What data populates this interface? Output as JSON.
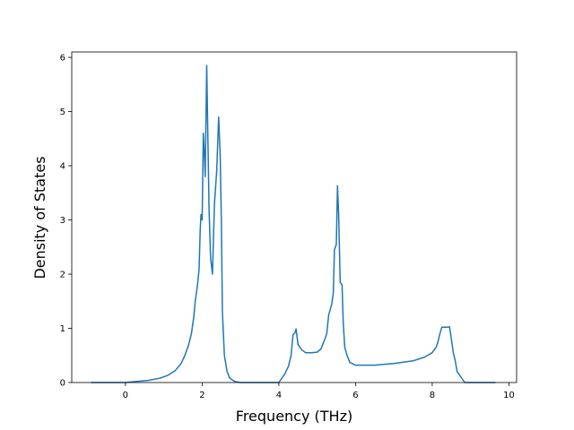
{
  "chart_data": {
    "type": "line",
    "title": "",
    "xlabel": "Frequency (THz)",
    "ylabel": "Density of States",
    "xlim": [
      -1.4,
      10.2
    ],
    "ylim": [
      0,
      6.1
    ],
    "xticks": [
      0,
      2,
      4,
      6,
      8,
      10
    ],
    "yticks": [
      0,
      1,
      2,
      3,
      4,
      5,
      6
    ],
    "grid": false,
    "legend": "none",
    "series": [
      {
        "color": "#1f77b4",
        "points": [
          [
            -0.9,
            0.0
          ],
          [
            -0.5,
            0.0
          ],
          [
            0.0,
            0.0
          ],
          [
            0.3,
            0.02
          ],
          [
            0.6,
            0.04
          ],
          [
            0.9,
            0.08
          ],
          [
            1.1,
            0.13
          ],
          [
            1.3,
            0.22
          ],
          [
            1.45,
            0.35
          ],
          [
            1.55,
            0.5
          ],
          [
            1.65,
            0.7
          ],
          [
            1.72,
            0.9
          ],
          [
            1.78,
            1.2
          ],
          [
            1.82,
            1.5
          ],
          [
            1.88,
            1.8
          ],
          [
            1.92,
            2.1
          ],
          [
            1.95,
            2.8
          ],
          [
            1.97,
            3.1
          ],
          [
            2.0,
            3.0
          ],
          [
            2.03,
            4.6
          ],
          [
            2.06,
            4.2
          ],
          [
            2.08,
            3.8
          ],
          [
            2.12,
            5.85
          ],
          [
            2.15,
            4.5
          ],
          [
            2.18,
            3.2
          ],
          [
            2.22,
            2.3
          ],
          [
            2.27,
            2.0
          ],
          [
            2.32,
            3.3
          ],
          [
            2.38,
            3.9
          ],
          [
            2.43,
            4.9
          ],
          [
            2.47,
            4.2
          ],
          [
            2.5,
            3.0
          ],
          [
            2.53,
            1.3
          ],
          [
            2.58,
            0.5
          ],
          [
            2.65,
            0.2
          ],
          [
            2.72,
            0.08
          ],
          [
            2.85,
            0.02
          ],
          [
            3.0,
            0.0
          ],
          [
            3.5,
            0.0
          ],
          [
            4.0,
            0.0
          ],
          [
            4.05,
            0.05
          ],
          [
            4.15,
            0.15
          ],
          [
            4.25,
            0.3
          ],
          [
            4.32,
            0.5
          ],
          [
            4.37,
            0.88
          ],
          [
            4.42,
            0.92
          ],
          [
            4.45,
            0.99
          ],
          [
            4.5,
            0.7
          ],
          [
            4.6,
            0.6
          ],
          [
            4.7,
            0.55
          ],
          [
            4.85,
            0.55
          ],
          [
            5.0,
            0.56
          ],
          [
            5.1,
            0.62
          ],
          [
            5.2,
            0.8
          ],
          [
            5.25,
            0.9
          ],
          [
            5.3,
            1.25
          ],
          [
            5.38,
            1.45
          ],
          [
            5.42,
            1.65
          ],
          [
            5.45,
            2.45
          ],
          [
            5.5,
            2.55
          ],
          [
            5.53,
            3.63
          ],
          [
            5.56,
            3.1
          ],
          [
            5.6,
            1.85
          ],
          [
            5.65,
            1.8
          ],
          [
            5.68,
            1.1
          ],
          [
            5.72,
            0.65
          ],
          [
            5.78,
            0.5
          ],
          [
            5.85,
            0.37
          ],
          [
            6.0,
            0.32
          ],
          [
            6.5,
            0.32
          ],
          [
            7.0,
            0.35
          ],
          [
            7.5,
            0.4
          ],
          [
            7.8,
            0.47
          ],
          [
            8.0,
            0.55
          ],
          [
            8.1,
            0.65
          ],
          [
            8.15,
            0.75
          ],
          [
            8.2,
            0.9
          ],
          [
            8.25,
            1.02
          ],
          [
            8.4,
            1.02
          ],
          [
            8.45,
            1.03
          ],
          [
            8.5,
            0.8
          ],
          [
            8.55,
            0.55
          ],
          [
            8.6,
            0.4
          ],
          [
            8.65,
            0.2
          ],
          [
            8.75,
            0.1
          ],
          [
            8.85,
            0.0
          ],
          [
            9.3,
            0.0
          ],
          [
            9.65,
            0.0
          ]
        ]
      }
    ]
  }
}
